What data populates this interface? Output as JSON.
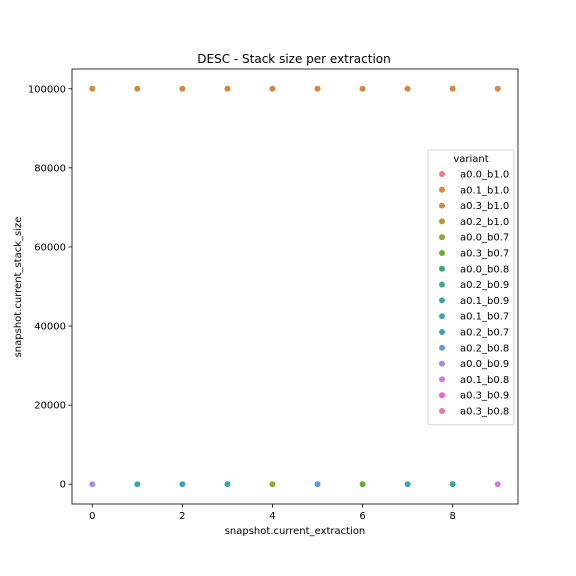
{
  "chart_data": {
    "type": "scatter",
    "title": "DESC - Stack size per extraction",
    "xlabel": "snapshot.current_extraction",
    "ylabel": "snapshot.current_stack_size",
    "xlim": [
      -0.45,
      9.45
    ],
    "ylim": [
      -5000,
      105000
    ],
    "xticks": [
      0,
      2,
      4,
      6,
      8
    ],
    "xtick_labels": [
      "0",
      "2",
      "4",
      "6",
      "8"
    ],
    "yticks": [
      0,
      20000,
      40000,
      60000,
      80000,
      100000
    ],
    "ytick_labels": [
      "0",
      "20000",
      "40000",
      "60000",
      "80000",
      "100000"
    ],
    "grid": false,
    "legend_title": "variant",
    "legend_position": "center-right",
    "series": [
      {
        "name": "a0.0_b1.0",
        "color": "#f77189"
      },
      {
        "name": "a0.1_b1.0",
        "color": "#e2853c"
      },
      {
        "name": "a0.3_b1.0",
        "color": "#cf8a3f",
        "x": [
          0,
          1,
          2,
          3,
          4,
          5,
          6,
          7,
          8,
          9
        ],
        "y": [
          100000,
          100000,
          100000,
          100000,
          100000,
          100000,
          100000,
          100000,
          100000,
          100000
        ]
      },
      {
        "name": "a0.2_b1.0",
        "color": "#b29a35"
      },
      {
        "name": "a0.0_b0.7",
        "color": "#97a431",
        "x": [
          4
        ],
        "y": [
          0
        ]
      },
      {
        "name": "a0.3_b0.7",
        "color": "#6aac31",
        "x": [
          6
        ],
        "y": [
          0
        ]
      },
      {
        "name": "a0.0_b0.8",
        "color": "#36ad6e"
      },
      {
        "name": "a0.2_b0.9",
        "color": "#36ad8f",
        "x": [
          8
        ],
        "y": [
          0
        ]
      },
      {
        "name": "a0.1_b0.9",
        "color": "#37aaa2",
        "x": [
          3
        ],
        "y": [
          0
        ]
      },
      {
        "name": "a0.1_b0.7",
        "color": "#39a7b2",
        "x": [
          1,
          7
        ],
        "y": [
          0,
          0
        ]
      },
      {
        "name": "a0.2_b0.7",
        "color": "#3ba3c6",
        "x": [
          2
        ],
        "y": [
          0
        ]
      },
      {
        "name": "a0.2_b0.8",
        "color": "#5a98e8",
        "x": [
          5
        ],
        "y": [
          0
        ]
      },
      {
        "name": "a0.0_b0.9",
        "color": "#a48cf4",
        "x": [
          0
        ],
        "y": [
          0
        ]
      },
      {
        "name": "a0.1_b0.8",
        "color": "#cc79e6",
        "x": [
          9
        ],
        "y": [
          0
        ]
      },
      {
        "name": "a0.3_b0.9",
        "color": "#f45fd6"
      },
      {
        "name": "a0.3_b0.8",
        "color": "#f46fac"
      }
    ]
  }
}
